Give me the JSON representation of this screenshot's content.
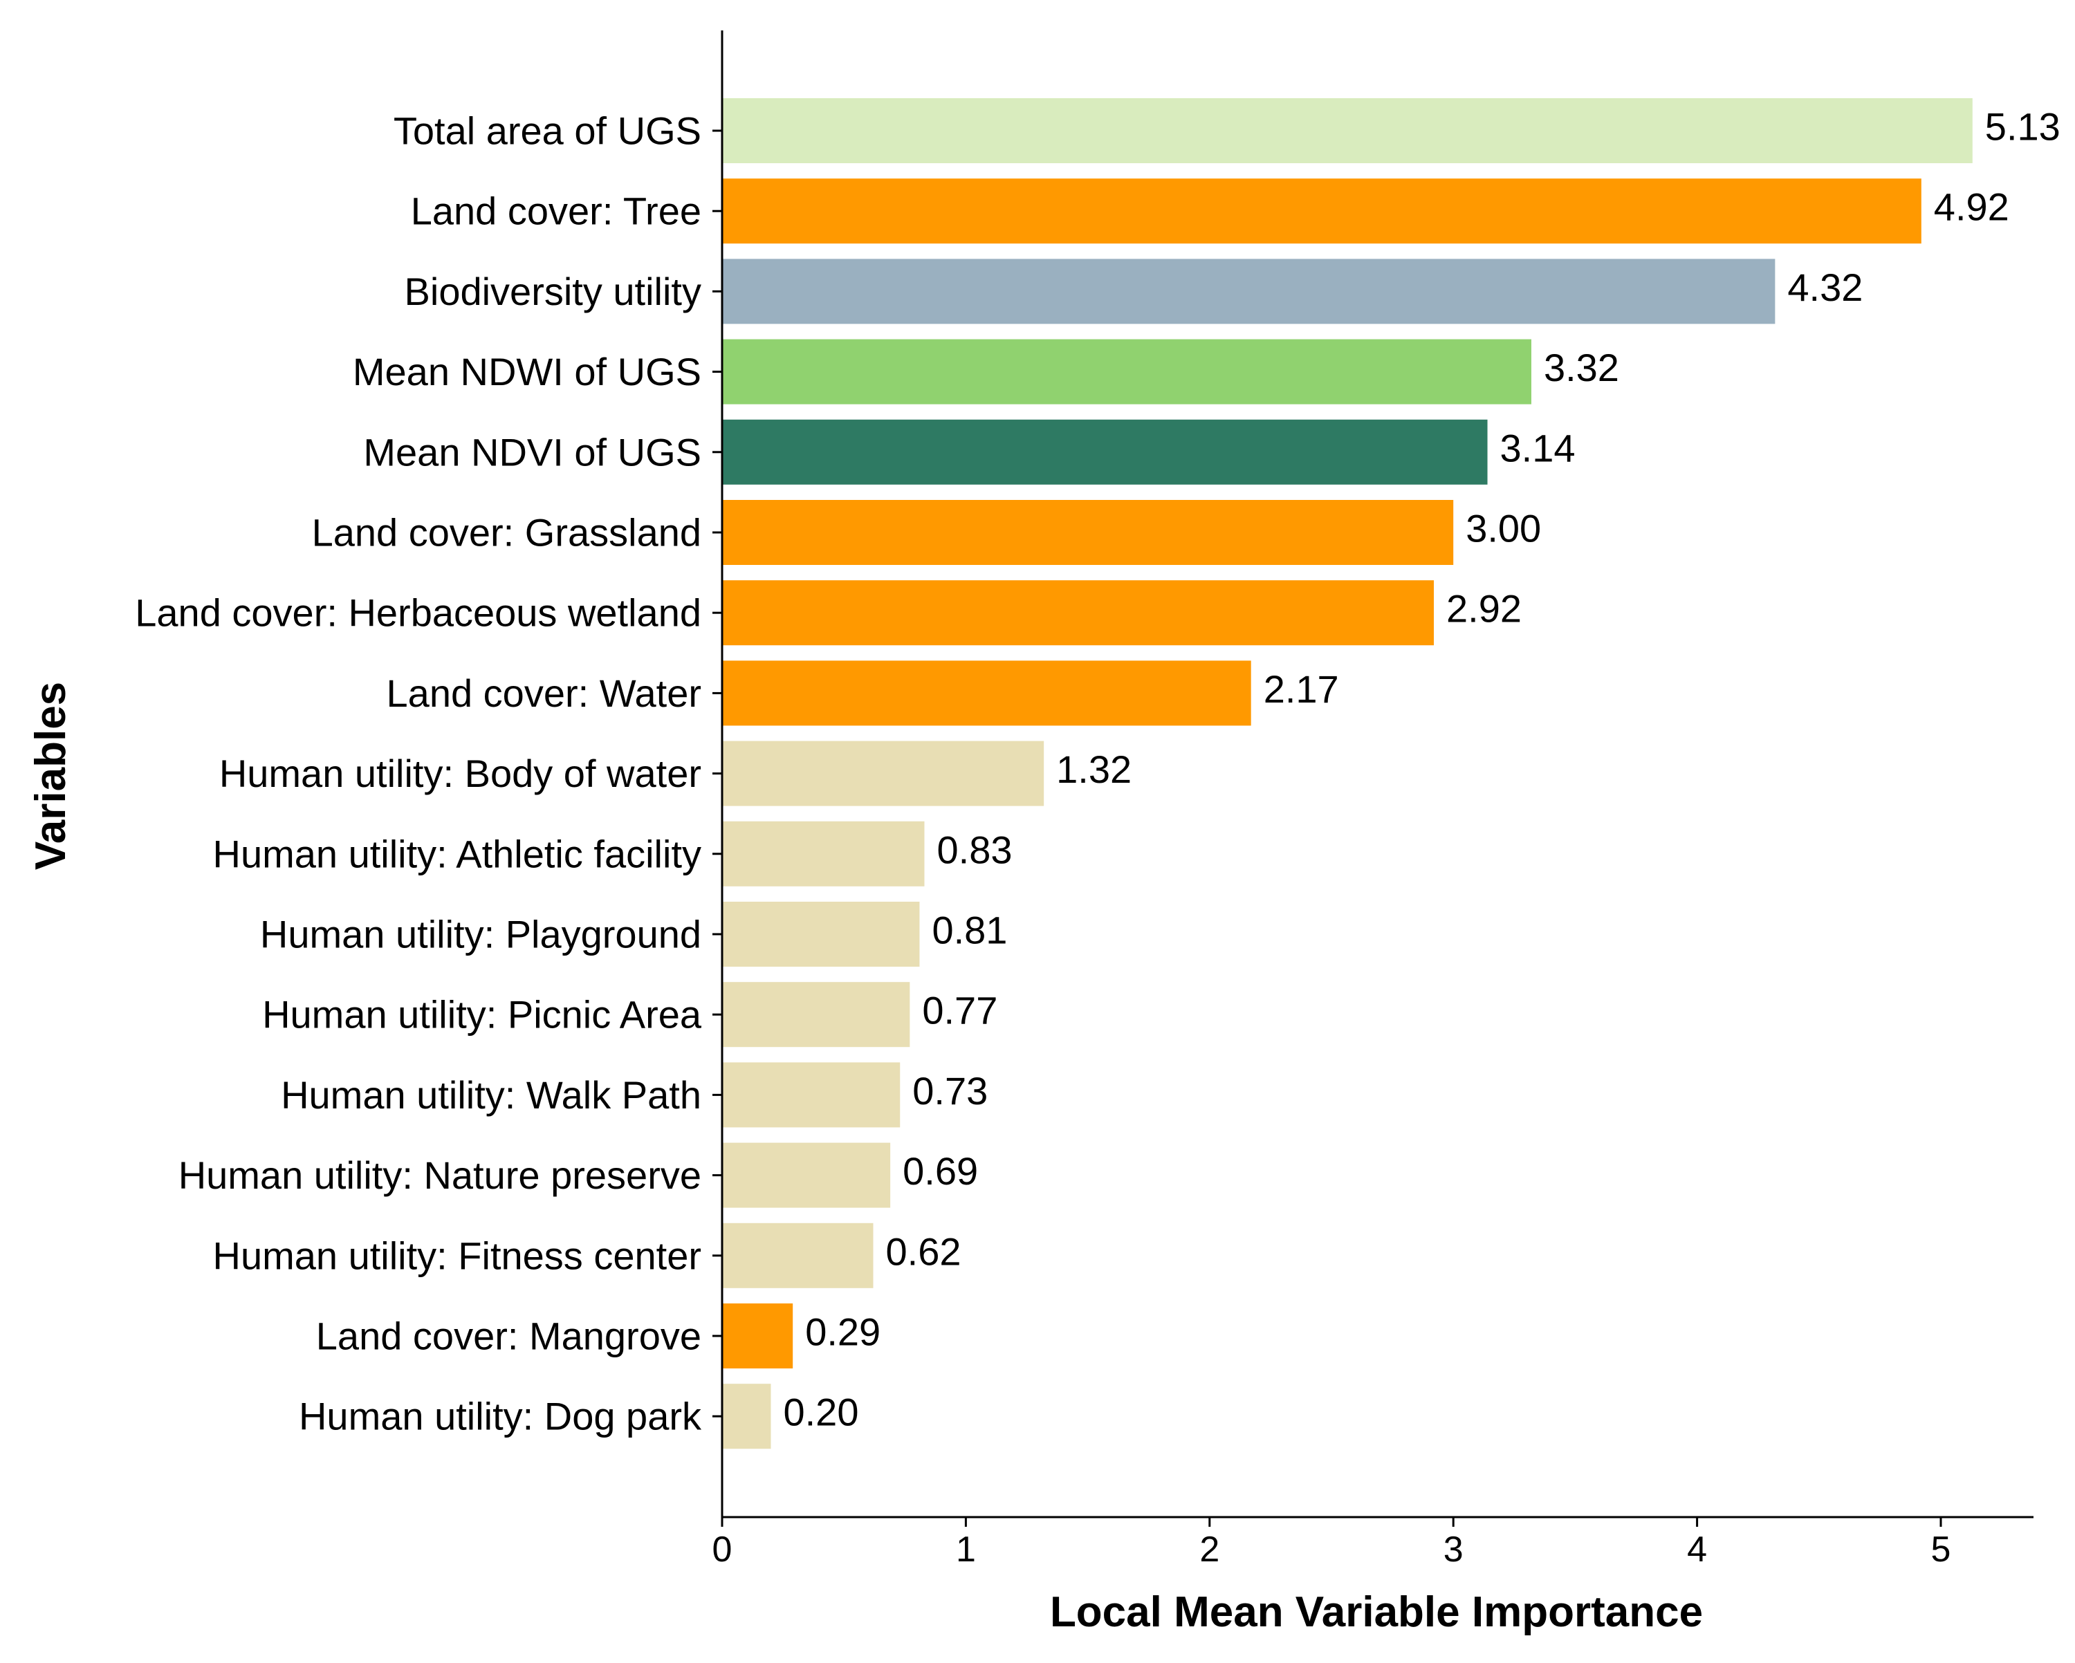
{
  "chart_data": {
    "type": "bar",
    "orientation": "horizontal",
    "title": "",
    "xlabel": "Local Mean Variable Importance",
    "ylabel": "Variables",
    "xlim": [
      0,
      5.4
    ],
    "xticks": [
      0,
      1,
      2,
      3,
      4,
      5
    ],
    "xtick_labels": [
      "0",
      "1",
      "2",
      "3",
      "4",
      "5"
    ],
    "grid": false,
    "legend": "none",
    "categories": [
      "Total area of UGS",
      "Land cover: Tree",
      "Biodiversity utility",
      "Mean NDWI of UGS",
      "Mean NDVI of UGS",
      "Land cover: Grassland",
      "Land cover: Herbaceous wetland",
      "Land cover: Water",
      "Human utility: Body of water",
      "Human utility: Athletic facility",
      "Human utility: Playground",
      "Human utility: Picnic Area",
      "Human utility: Walk Path",
      "Human utility: Nature preserve",
      "Human utility: Fitness center",
      "Land cover: Mangrove",
      "Human utility: Dog park"
    ],
    "values": [
      5.13,
      4.92,
      4.32,
      3.32,
      3.14,
      3.0,
      2.92,
      2.17,
      1.32,
      0.83,
      0.81,
      0.77,
      0.73,
      0.69,
      0.62,
      0.29,
      0.2
    ],
    "value_labels": [
      "5.13",
      "4.92",
      "4.32",
      "3.32",
      "3.14",
      "3.00",
      "2.92",
      "2.17",
      "1.32",
      "0.83",
      "0.81",
      "0.77",
      "0.73",
      "0.69",
      "0.62",
      "0.29",
      "0.20"
    ],
    "colors": [
      "#d9ecbe",
      "#ff9900",
      "#9ab0c0",
      "#90d26f",
      "#2e7a63",
      "#ff9900",
      "#ff9900",
      "#ff9900",
      "#e8deb4",
      "#e8deb4",
      "#e8deb4",
      "#e8deb4",
      "#e8deb4",
      "#e8deb4",
      "#e8deb4",
      "#ff9900",
      "#e8deb4"
    ]
  }
}
